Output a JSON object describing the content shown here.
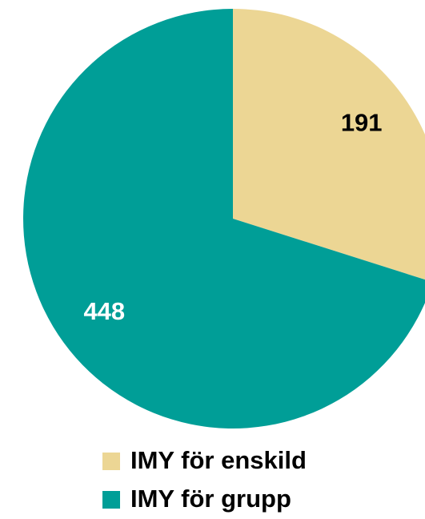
{
  "chart_data": {
    "type": "pie",
    "categories": [
      "IMY för enskild",
      "IMY för grupp"
    ],
    "values": [
      191,
      448
    ],
    "colors": [
      "#ecd694",
      "#009e97"
    ],
    "label_colors": [
      "#000000",
      "#ffffff"
    ]
  }
}
